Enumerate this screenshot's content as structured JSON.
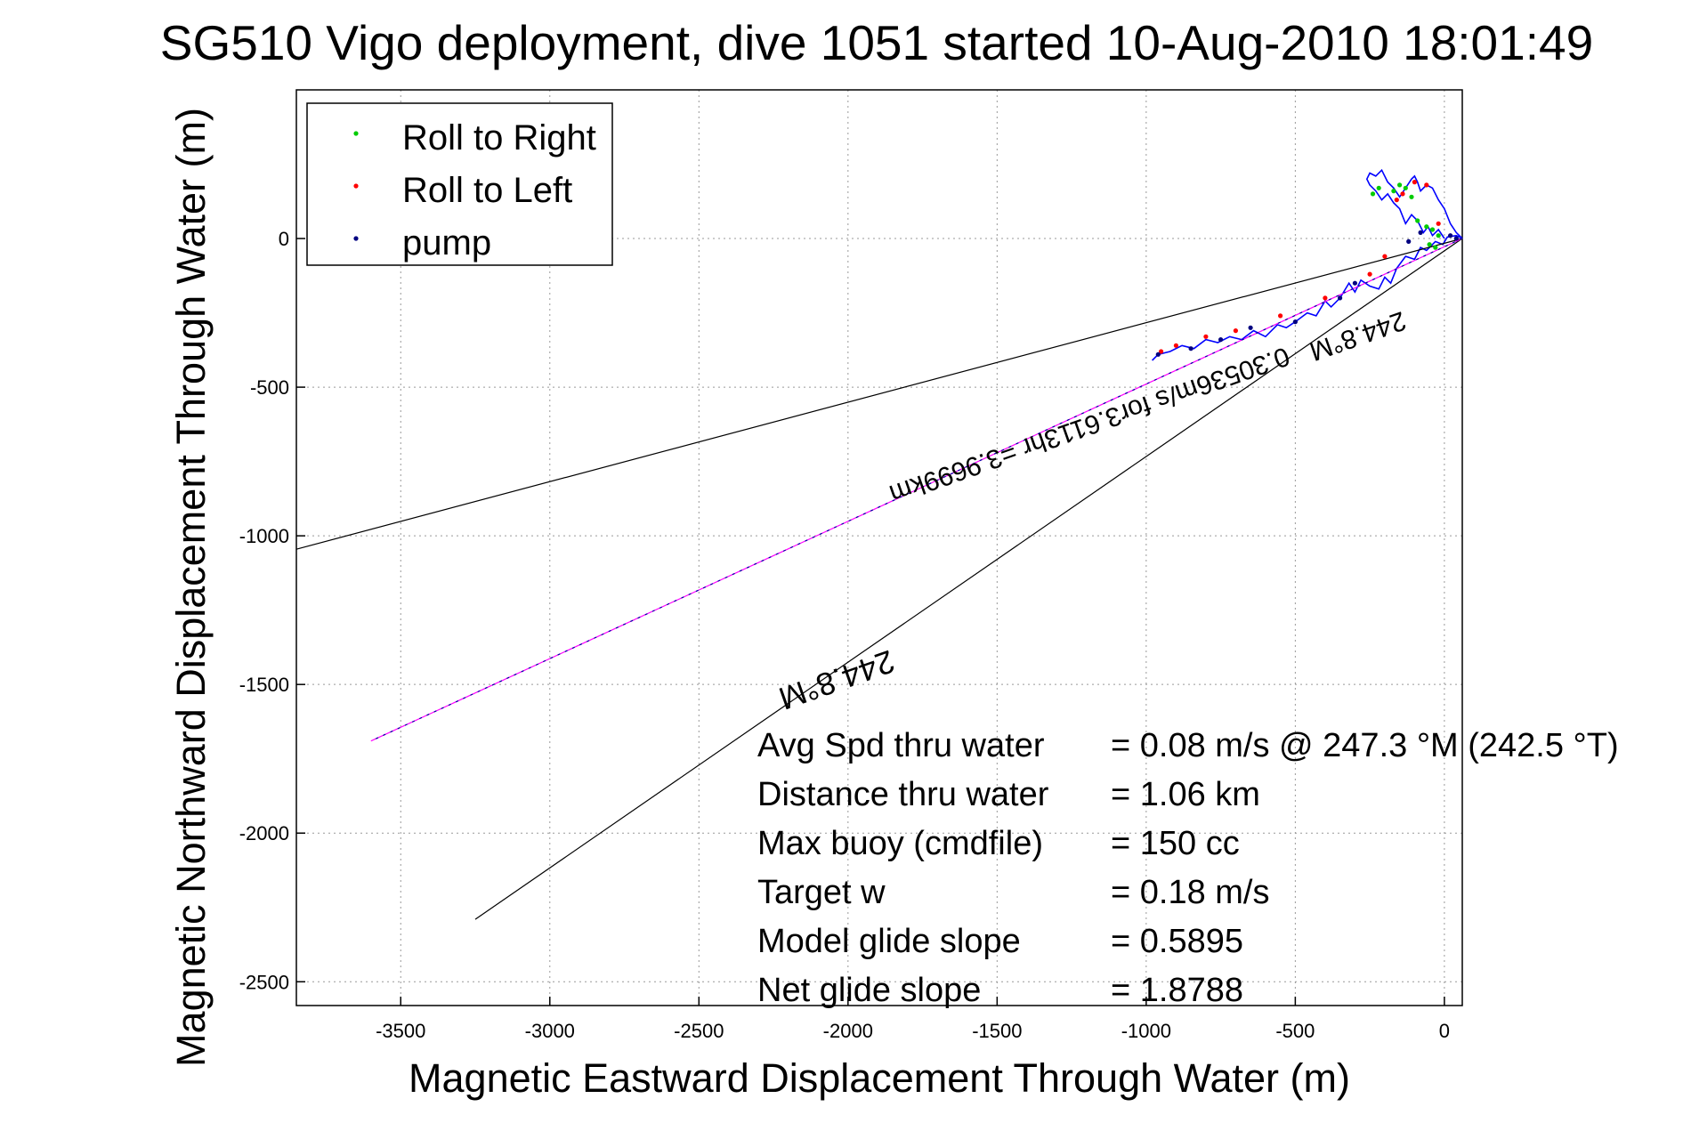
{
  "chart_data": {
    "type": "line",
    "title": "SG510 Vigo deployment, dive 1051 started 10-Aug-2010 18:01:49",
    "xlabel": "Magnetic Eastward Displacement Through Water (m)",
    "ylabel": "Magnetic Northward Displacement Through Water (m)",
    "xlim": [
      -3850,
      60
    ],
    "ylim": [
      -2580,
      500
    ],
    "xticks": [
      -3500,
      -3000,
      -2500,
      -2000,
      -1500,
      -1000,
      -500,
      0
    ],
    "yticks": [
      0,
      -500,
      -1000,
      -1500,
      -2000,
      -2500
    ],
    "grid": true,
    "legend_position": "top-left",
    "legend": [
      {
        "label": "Roll to Right",
        "color": "#00cc00"
      },
      {
        "label": "Roll to Left",
        "color": "#ff0000"
      },
      {
        "label": "pump",
        "color": "#000080"
      }
    ],
    "series": [
      {
        "type": "track",
        "color": "#0000ff",
        "x": [
          60,
          40,
          10,
          -5,
          -30,
          -60,
          -80,
          -100,
          -130,
          -160,
          -180,
          -200,
          -220,
          -250,
          -280,
          -300,
          -320,
          -350,
          -380,
          -400,
          -430,
          -460,
          -500,
          -530,
          -560,
          -600,
          -640,
          -680,
          -720,
          -760,
          -800,
          -840,
          -880,
          -920,
          -960,
          -980
        ],
        "y": [
          0,
          10,
          5,
          -20,
          -10,
          -40,
          -30,
          -70,
          -60,
          -100,
          -150,
          -130,
          -170,
          -160,
          -140,
          -180,
          -150,
          -200,
          -230,
          -210,
          -260,
          -250,
          -280,
          -300,
          -290,
          -330,
          -310,
          -340,
          -330,
          -350,
          -340,
          -370,
          -360,
          -380,
          -390,
          -410
        ]
      },
      {
        "type": "track",
        "color": "#0000ff",
        "x": [
          0,
          -20,
          -40,
          -55,
          -70,
          -90,
          -110,
          -130,
          -150,
          -170,
          -190,
          -210,
          -230,
          -250,
          -260,
          -250,
          -230,
          -210,
          -190,
          -170,
          -150,
          -130,
          -110,
          -100,
          -90,
          -80,
          -60,
          -40,
          -20,
          0,
          20,
          40,
          60
        ],
        "y": [
          0,
          30,
          10,
          40,
          20,
          60,
          80,
          50,
          100,
          120,
          150,
          130,
          160,
          180,
          200,
          220,
          210,
          230,
          190,
          170,
          140,
          170,
          200,
          210,
          190,
          160,
          180,
          170,
          130,
          100,
          50,
          20,
          0
        ]
      },
      {
        "type": "line",
        "color": "#000000",
        "x": [
          60,
          -3850
        ],
        "y": [
          0,
          -1045
        ]
      },
      {
        "type": "line",
        "color": "#000000",
        "x": [
          60,
          -3250
        ],
        "y": [
          0,
          -2290
        ]
      },
      {
        "type": "line",
        "color": "#ff00ff",
        "x": [
          60,
          -3600
        ],
        "y": [
          0,
          -1690
        ]
      },
      {
        "type": "line",
        "color": "#0000a0",
        "x": [
          60,
          -3600
        ],
        "y": [
          0,
          -1690
        ]
      }
    ],
    "markers": {
      "roll_right": {
        "color": "#00cc00",
        "x": [
          -240,
          -220,
          -170,
          -150,
          -130,
          -110,
          -90,
          -60,
          -40,
          -20,
          -50,
          -30
        ],
        "y": [
          150,
          170,
          160,
          180,
          170,
          140,
          60,
          40,
          30,
          10,
          -20,
          -30
        ]
      },
      "roll_left": {
        "color": "#ff0000",
        "x": [
          -160,
          -140,
          -100,
          -60,
          -20,
          -200,
          -250,
          -400,
          -550,
          -700,
          -800,
          -900,
          -950
        ],
        "y": [
          130,
          150,
          190,
          180,
          50,
          -60,
          -120,
          -200,
          -260,
          -310,
          -330,
          -360,
          -380
        ]
      },
      "pump": {
        "color": "#000080",
        "x": [
          40,
          20,
          -80,
          -120,
          -300,
          -350,
          -500,
          -650,
          -750,
          -850,
          -960
        ],
        "y": [
          0,
          10,
          20,
          -10,
          -150,
          -200,
          -280,
          -300,
          -340,
          -370,
          -390
        ]
      }
    },
    "annotations": [
      {
        "text": "244.8°M",
        "style": "big",
        "x": -2050,
        "y": -1450
      },
      {
        "text": "244.8°M",
        "style": "normal",
        "x": -300,
        "y": -300
      },
      {
        "text": "0.30536m/s for3.6113hr =3.9699km",
        "style": "normal",
        "x": -1200,
        "y": -600
      }
    ],
    "stats": [
      {
        "label": "Avg Spd thru water",
        "value": "=  0.08 m/s @ 247.3 °M (242.5 °T)"
      },
      {
        "label": "Distance thru water",
        "value": "=  1.06 km"
      },
      {
        "label": "Max buoy (cmdfile)",
        "value": "= 150 cc"
      },
      {
        "label": "Target w",
        "value": "= 0.18 m/s"
      },
      {
        "label": "Model glide slope",
        "value": "= 0.5895"
      },
      {
        "label": "Net glide slope",
        "value": "= 1.8788"
      }
    ]
  }
}
